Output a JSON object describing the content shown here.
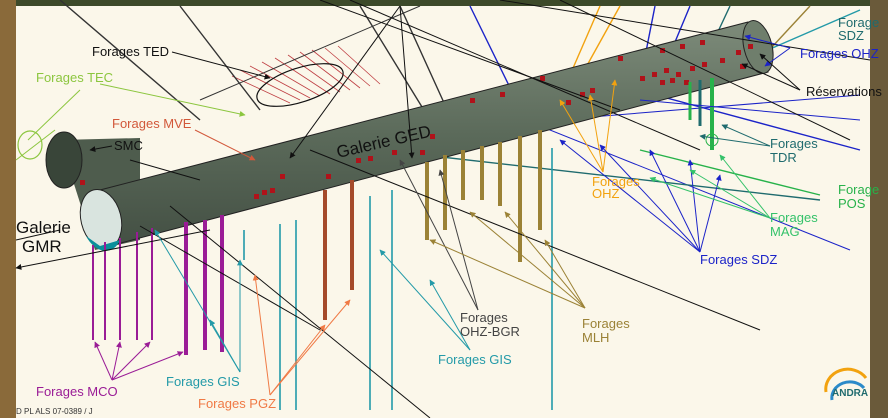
{
  "labels": {
    "forages_ted": "Forages TED",
    "forages_tec": "Forages TEC",
    "forages_mve": "Forages MVE",
    "smc": "SMC",
    "galerie_gmr_1": "Galerie",
    "galerie_gmr_2": "GMR",
    "galerie_ged": "Galerie GED",
    "forages_sdz_top_1": "Forage",
    "forages_sdz_top_2": "SDZ",
    "forages_ohz_top": "Forages OHZ",
    "reservations": "Réservations",
    "forages_tdr_1": "Forages",
    "forages_tdr_2": "TDR",
    "forages_ohz_mid_1": "Forages",
    "forages_ohz_mid_2": "OHZ",
    "forage_pos_1": "Forage",
    "forage_pos_2": "POS",
    "forages_mag_1": "Forages",
    "forages_mag_2": "MAG",
    "forages_sdz_bottom": "Forages SDZ",
    "forages_ohz_bgr_1": "Forages",
    "forages_ohz_bgr_2": "OHZ-BGR",
    "forages_mlh_1": "Forages",
    "forages_mlh_2": "MLH",
    "forages_gis_mid": "Forages GIS",
    "forages_mco": "Forages MCO",
    "forages_gis_bottom": "Forages GIS",
    "forages_pgz": "Forages PGZ",
    "reference": "D PL ALS 07-0389 / J",
    "logo_text": "ANDRA"
  },
  "colors": {
    "background": "#fbf7ea",
    "galerie": "#5f6e5e",
    "black": "#111111",
    "tec_green": "#8cc63f",
    "mve_orange": "#d2583a",
    "sdz_blue": "#1b23c8",
    "ohz_orange": "#f2a20f",
    "tdr_teal": "#1f6b6e",
    "pos_green": "#27b24a",
    "mag_green": "#34c26a",
    "ohz_bgr_gray": "#444444",
    "mlh_olive": "#9b8236",
    "gis_teal": "#239aa8",
    "mco_purple": "#9a1c96",
    "pgz_orange": "#f07a45",
    "marker_red": "#b0121a"
  },
  "icons": [
    "andra-logo-icon"
  ]
}
